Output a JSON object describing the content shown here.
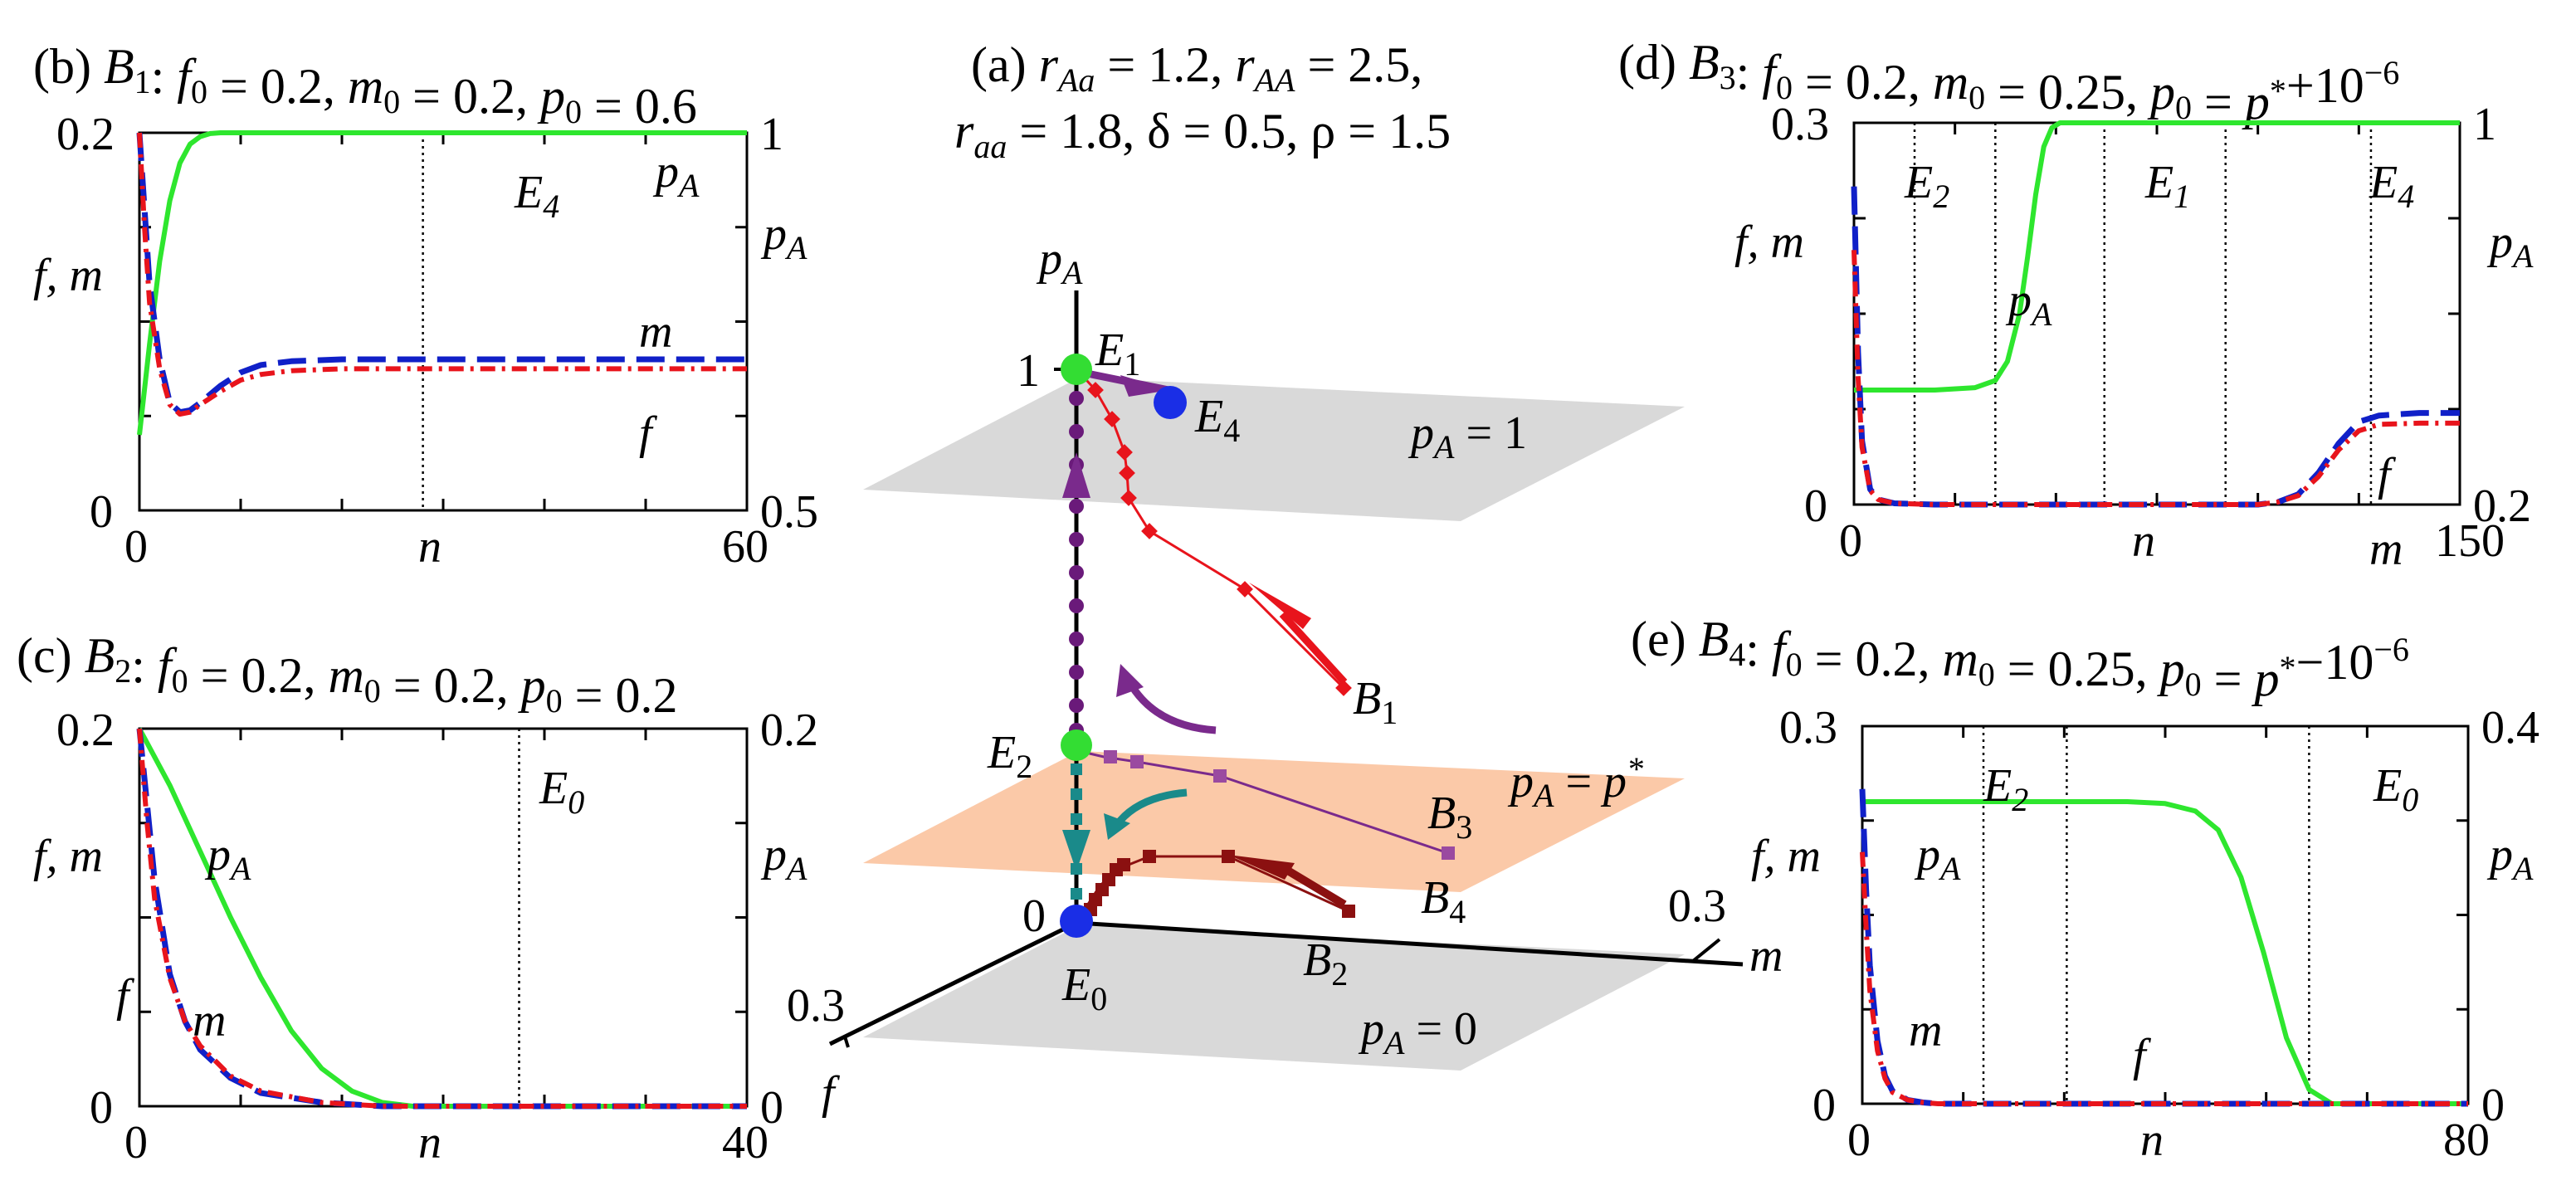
{
  "figure": {
    "panel_a": {
      "title_line1": "(a) r_Aa = 1.2, r_AA = 2.5,",
      "title_line2": "r_aa = 1.8, δ = 0.5, ρ = 1.5",
      "axis_pA": "pA",
      "axis_m": "m",
      "axis_f": "f",
      "tick_1": "1",
      "tick_0": "0",
      "tick_m": "0.3",
      "tick_f": "0.3",
      "plane_top": "pA = 1",
      "plane_mid": "pA = p*",
      "plane_bot": "pA = 0",
      "E0": "E0",
      "E1": "E1",
      "E2": "E2",
      "E4": "E4",
      "B1": "B1",
      "B2": "B2",
      "B3": "B3",
      "B4": "B4"
    },
    "colors": {
      "f": "#e8141c",
      "m": "#1020c8",
      "pA": "#2ee62e",
      "E_green": "#33dd33",
      "E_blue": "#1a2ee6",
      "traj_B1": "#e8141c",
      "traj_B2": "#8b1010",
      "traj_B3": "#7a2a8c",
      "traj_B4": "#1a8a8a",
      "plane_grey": "#d9d9d9",
      "plane_orange": "#fbc9a8"
    }
  },
  "chart_data": [
    {
      "panel": "(b)",
      "type": "line",
      "title": "(b) B1: f0 = 0.2, m0 = 0.2, p0 = 0.6",
      "xlabel": "n",
      "ylabel_left": "f, m",
      "ylabel_right": "pA",
      "xlim": [
        0,
        60
      ],
      "ylim_left": [
        0,
        0.2
      ],
      "ylim_right": [
        0.5,
        1
      ],
      "x_ticks": [
        "0",
        "n",
        "60"
      ],
      "y_ticks_left": [
        "0",
        "0.2"
      ],
      "y_ticks_right": [
        "0.5",
        "1"
      ],
      "vlines": [
        28
      ],
      "region_labels": [
        "E4"
      ],
      "series": [
        {
          "name": "pA",
          "axis": "right",
          "x": [
            0,
            1,
            2,
            3,
            4,
            5,
            6,
            7,
            8,
            10,
            15,
            60
          ],
          "values": [
            0.6,
            0.72,
            0.83,
            0.91,
            0.96,
            0.985,
            0.995,
            0.999,
            1,
            1,
            1,
            1
          ]
        },
        {
          "name": "m",
          "axis": "left",
          "x": [
            0,
            0.5,
            1,
            2,
            3,
            4,
            5,
            6,
            8,
            10,
            12,
            15,
            20,
            30,
            60
          ],
          "values": [
            0.2,
            0.16,
            0.12,
            0.08,
            0.057,
            0.052,
            0.053,
            0.057,
            0.066,
            0.073,
            0.077,
            0.079,
            0.08,
            0.08,
            0.08
          ]
        },
        {
          "name": "f",
          "axis": "left",
          "x": [
            0,
            0.5,
            1,
            2,
            3,
            4,
            5,
            6,
            8,
            10,
            12,
            15,
            20,
            30,
            60
          ],
          "values": [
            0.2,
            0.15,
            0.11,
            0.075,
            0.056,
            0.051,
            0.052,
            0.056,
            0.063,
            0.069,
            0.072,
            0.074,
            0.075,
            0.075,
            0.075
          ]
        }
      ]
    },
    {
      "panel": "(c)",
      "type": "line",
      "title": "(c) B2: f0 = 0.2, m0 = 0.2, p0 = 0.2",
      "xlabel": "n",
      "ylabel_left": "f, m",
      "ylabel_right": "pA",
      "xlim": [
        0,
        40
      ],
      "ylim_left": [
        0,
        0.2
      ],
      "ylim_right": [
        0,
        0.2
      ],
      "x_ticks": [
        "0",
        "n",
        "40"
      ],
      "y_ticks_left": [
        "0",
        "0.2"
      ],
      "y_ticks_right": [
        "0",
        "0.2"
      ],
      "vlines": [
        25
      ],
      "region_labels": [
        "E0"
      ],
      "series": [
        {
          "name": "pA",
          "axis": "right",
          "x": [
            0,
            2,
            4,
            6,
            8,
            10,
            12,
            14,
            16,
            18,
            40
          ],
          "values": [
            0.2,
            0.17,
            0.135,
            0.1,
            0.068,
            0.04,
            0.02,
            0.008,
            0.002,
            0,
            0
          ]
        },
        {
          "name": "m",
          "axis": "left",
          "x": [
            0,
            0.5,
            1,
            2,
            3,
            4,
            6,
            8,
            12,
            16,
            40
          ],
          "values": [
            0.2,
            0.16,
            0.12,
            0.07,
            0.045,
            0.03,
            0.015,
            0.007,
            0.002,
            0,
            0
          ]
        },
        {
          "name": "f",
          "axis": "left",
          "x": [
            0,
            0.5,
            1,
            2,
            3,
            4,
            6,
            8,
            12,
            16,
            40
          ],
          "values": [
            0.2,
            0.15,
            0.11,
            0.068,
            0.045,
            0.032,
            0.016,
            0.008,
            0.002,
            0,
            0
          ]
        }
      ]
    },
    {
      "panel": "(d)",
      "type": "line",
      "title": "(d) B3: f0 = 0.2, m0 = 0.25, p0 = p*+10^-6",
      "xlabel": "n",
      "ylabel_left": "f, m",
      "ylabel_right": "pA",
      "xlim": [
        0,
        150
      ],
      "ylim_left": [
        0,
        0.3
      ],
      "ylim_right": [
        0.2,
        1
      ],
      "x_ticks": [
        "0",
        "n",
        "150"
      ],
      "y_ticks_left": [
        "0",
        "0.3"
      ],
      "y_ticks_right": [
        "0.2",
        "1"
      ],
      "vlines": [
        15,
        35,
        62,
        92,
        128
      ],
      "region_labels": [
        "E2",
        "E1",
        "E4"
      ],
      "series": [
        {
          "name": "pA",
          "axis": "right",
          "x": [
            0,
            20,
            30,
            35,
            38,
            41,
            43,
            45,
            47,
            49,
            51,
            150
          ],
          "values": [
            0.44,
            0.44,
            0.445,
            0.46,
            0.5,
            0.6,
            0.72,
            0.85,
            0.95,
            0.99,
            1,
            1
          ]
        },
        {
          "name": "m",
          "axis": "left",
          "x": [
            0,
            1,
            2,
            4,
            6,
            10,
            20,
            100,
            105,
            110,
            115,
            120,
            125,
            130,
            140,
            150
          ],
          "values": [
            0.25,
            0.12,
            0.05,
            0.012,
            0.004,
            0.001,
            0,
            0,
            0.002,
            0.008,
            0.025,
            0.048,
            0.065,
            0.07,
            0.072,
            0.072
          ]
        },
        {
          "name": "f",
          "axis": "left",
          "x": [
            0,
            1,
            2,
            4,
            6,
            10,
            20,
            100,
            105,
            110,
            115,
            120,
            125,
            130,
            140,
            150
          ],
          "values": [
            0.2,
            0.1,
            0.045,
            0.011,
            0.004,
            0.001,
            0,
            0,
            0.002,
            0.007,
            0.022,
            0.043,
            0.058,
            0.063,
            0.064,
            0.064
          ]
        }
      ]
    },
    {
      "panel": "(e)",
      "type": "line",
      "title": "(e) B4: f0 = 0.2, m0 = 0.25, p0 = p*−10^-6",
      "xlabel": "n",
      "ylabel_left": "f, m",
      "ylabel_right": "pA",
      "xlim": [
        0,
        80
      ],
      "ylim_left": [
        0,
        0.3
      ],
      "ylim_right": [
        0,
        0.4
      ],
      "x_ticks": [
        "0",
        "n",
        "80"
      ],
      "y_ticks_left": [
        "0",
        "0.3"
      ],
      "y_ticks_right": [
        "0",
        "0.4"
      ],
      "vlines": [
        16,
        27,
        59
      ],
      "region_labels": [
        "E2",
        "E0"
      ],
      "series": [
        {
          "name": "pA",
          "axis": "right",
          "x": [
            0,
            35,
            40,
            44,
            47,
            50,
            53,
            56,
            59,
            62,
            80
          ],
          "values": [
            0.32,
            0.32,
            0.318,
            0.31,
            0.29,
            0.24,
            0.16,
            0.07,
            0.015,
            0,
            0
          ]
        },
        {
          "name": "m",
          "axis": "left",
          "x": [
            0,
            0.5,
            1,
            2,
            3,
            4,
            6,
            8,
            10,
            80
          ],
          "values": [
            0.25,
            0.17,
            0.11,
            0.05,
            0.022,
            0.01,
            0.003,
            0.001,
            0,
            0
          ]
        },
        {
          "name": "f",
          "axis": "left",
          "x": [
            0,
            0.5,
            1,
            2,
            3,
            4,
            6,
            8,
            10,
            80
          ],
          "values": [
            0.2,
            0.14,
            0.09,
            0.042,
            0.02,
            0.009,
            0.003,
            0.001,
            0,
            0
          ]
        }
      ]
    }
  ]
}
